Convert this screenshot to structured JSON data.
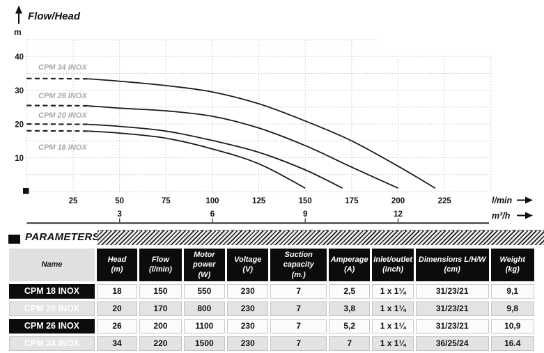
{
  "chart": {
    "title": "Flow/Head",
    "y_unit": "m",
    "x_unit_primary": "l/min",
    "x_unit_secondary": "m³/h"
  },
  "chart_data": {
    "type": "line",
    "title": "Flow/Head",
    "grid": true,
    "legend_position": "inline-labels",
    "y_axis": {
      "unit": "m",
      "ticks": [
        10,
        20,
        30,
        40
      ],
      "range": [
        0,
        45
      ],
      "grid_step": 5
    },
    "x_axis_primary": {
      "unit": "l/min",
      "ticks": [
        25,
        50,
        75,
        100,
        125,
        150,
        175,
        200,
        225
      ],
      "range": [
        0,
        250
      ]
    },
    "x_axis_secondary": {
      "unit": "m³/h",
      "ticks": [
        3,
        6,
        9,
        12
      ]
    },
    "series": [
      {
        "name": "CPM 34 INOX",
        "start_head": 33.5,
        "dash_end_lmin": 33,
        "label_pos": [
          55,
          100
        ],
        "points": [
          [
            33,
            33.4
          ],
          [
            50,
            32.7
          ],
          [
            75,
            31.4
          ],
          [
            100,
            29.5
          ],
          [
            125,
            26.0
          ],
          [
            150,
            20.9
          ],
          [
            175,
            15.0
          ],
          [
            200,
            7.5
          ],
          [
            220,
            1.0
          ]
        ]
      },
      {
        "name": "CPM 26 INOX",
        "start_head": 25.5,
        "dash_end_lmin": 33,
        "label_pos": [
          55,
          141
        ],
        "points": [
          [
            33,
            25.4
          ],
          [
            50,
            24.7
          ],
          [
            75,
            23.9
          ],
          [
            100,
            22.3
          ],
          [
            125,
            18.8
          ],
          [
            150,
            13.6
          ],
          [
            175,
            7.2
          ],
          [
            200,
            1.0
          ]
        ]
      },
      {
        "name": "CPM 20 INOX",
        "start_head": 20.0,
        "dash_end_lmin": 33,
        "label_pos": [
          55,
          169
        ],
        "points": [
          [
            33,
            19.9
          ],
          [
            50,
            19.3
          ],
          [
            75,
            17.9
          ],
          [
            100,
            15.1
          ],
          [
            125,
            11.6
          ],
          [
            150,
            6.4
          ],
          [
            170,
            1.0
          ]
        ]
      },
      {
        "name": "CPM 18 INOX",
        "start_head": 18.0,
        "dash_end_lmin": 33,
        "label_pos": [
          55,
          215
        ],
        "points": [
          [
            33,
            17.9
          ],
          [
            50,
            17.3
          ],
          [
            75,
            15.8
          ],
          [
            100,
            12.6
          ],
          [
            125,
            8.2
          ],
          [
            150,
            1.0
          ]
        ]
      }
    ]
  },
  "parameters": {
    "section_title": "PARAMETERS",
    "headers": [
      {
        "title": "Name",
        "unit": ""
      },
      {
        "title": "Head",
        "unit": "(m)"
      },
      {
        "title": "Flow",
        "unit": "(l/min)"
      },
      {
        "title": "Motor power",
        "unit": "(W)"
      },
      {
        "title": "Voltage",
        "unit": "(V)"
      },
      {
        "title": "Suction capacity",
        "unit": "(m.)"
      },
      {
        "title": "Amperage",
        "unit": "(A)"
      },
      {
        "title": "Inlet/outlet",
        "unit": "(inch)"
      },
      {
        "title": "Dimensions L/H/W",
        "unit": "(cm)"
      },
      {
        "title": "Weight",
        "unit": "(kg)"
      }
    ],
    "rows": [
      [
        "CPM 18 INOX",
        "18",
        "150",
        "550",
        "230",
        "7",
        "2,5",
        "1 x 1¼",
        "31/23/21",
        "9,1"
      ],
      [
        "CPM 20 INOX",
        "20",
        "170",
        "800",
        "230",
        "7",
        "3,8",
        "1 x 1¼",
        "31/23/21",
        "9,8"
      ],
      [
        "CPM 26 INOX",
        "26",
        "200",
        "1100",
        "230",
        "7",
        "5,2",
        "1 x 1¼",
        "31/23/21",
        "10,9"
      ],
      [
        "CPM 34 INOX",
        "34",
        "220",
        "1500",
        "230",
        "7",
        "7",
        "1 x 1¼",
        "36/25/24",
        "16.4"
      ]
    ]
  }
}
